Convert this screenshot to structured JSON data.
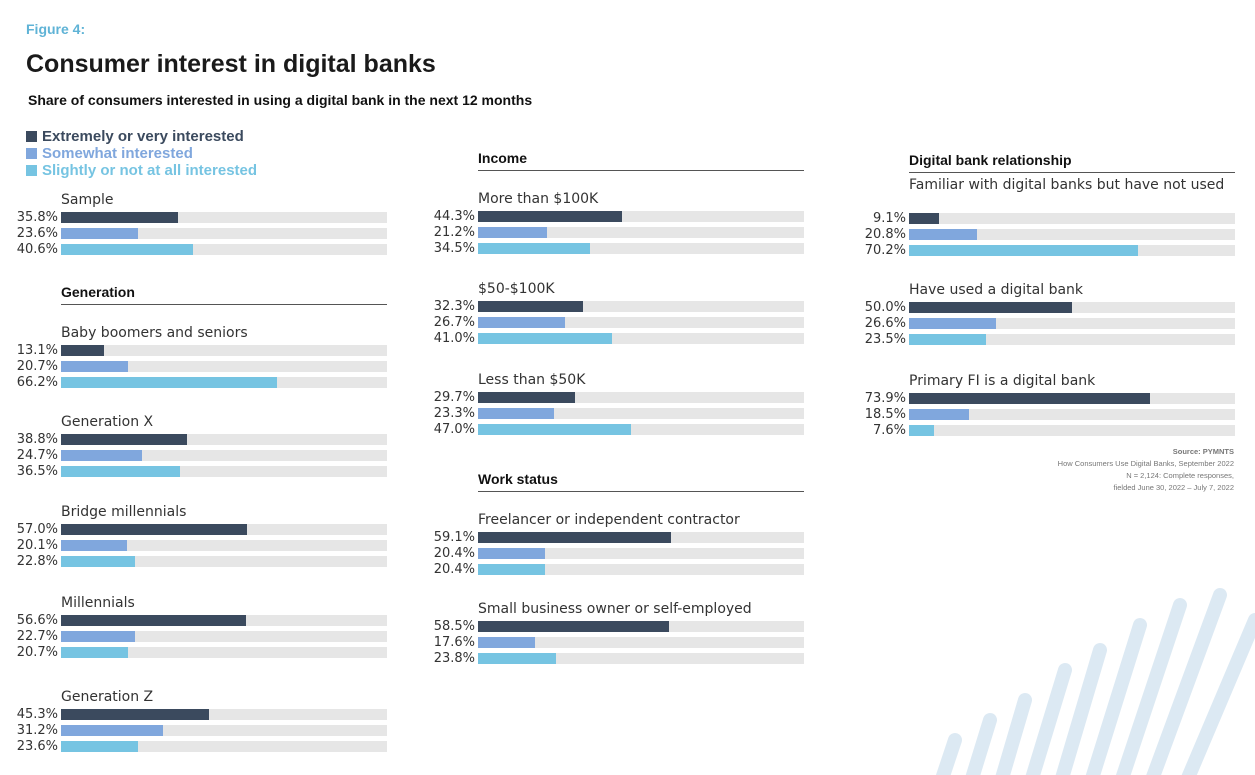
{
  "figure_label": "Figure 4:",
  "title": "Consumer interest in digital banks",
  "subtitle": "Share of consumers interested in using a digital bank in the next 12 months",
  "legend": [
    {
      "label": "Extremely or very interested",
      "color": "#3b4a5e"
    },
    {
      "label": "Somewhat interested",
      "color": "#80a7dd"
    },
    {
      "label": "Slightly or not at all interested",
      "color": "#76c4e2"
    }
  ],
  "source": {
    "title": "Source: PYMNTS",
    "lines": [
      "How Consumers Use Digital Banks, September 2022",
      "N = 2,124: Complete responses,",
      "fielded June 30, 2022 – July 7, 2022"
    ]
  },
  "chart_data": {
    "type": "bar",
    "orientation": "horizontal",
    "xlim": [
      0,
      100
    ],
    "series_names": [
      "Extremely or very interested",
      "Somewhat interested",
      "Slightly or not at all interested"
    ],
    "sections": [
      {
        "heading": "",
        "groups": [
          {
            "label": "Sample",
            "values": [
              35.8,
              23.6,
              40.6
            ],
            "labels": [
              "35.8%",
              "23.6%",
              "40.6%"
            ]
          }
        ]
      },
      {
        "heading": "Generation",
        "groups": [
          {
            "label": "Baby boomers and seniors",
            "values": [
              13.1,
              20.7,
              66.2
            ],
            "labels": [
              "13.1%",
              "20.7%",
              "66.2%"
            ]
          },
          {
            "label": "Generation X",
            "values": [
              38.8,
              24.7,
              36.5
            ],
            "labels": [
              "38.8%",
              "24.7%",
              "36.5%"
            ]
          },
          {
            "label": "Bridge millennials",
            "values": [
              57.0,
              20.1,
              22.8
            ],
            "labels": [
              "57.0%",
              "20.1%",
              "22.8%"
            ]
          },
          {
            "label": "Millennials",
            "values": [
              56.6,
              22.7,
              20.7
            ],
            "labels": [
              "56.6%",
              "22.7%",
              "20.7%"
            ]
          },
          {
            "label": "Generation Z",
            "values": [
              45.3,
              31.2,
              23.6
            ],
            "labels": [
              "45.3%",
              "31.2%",
              "23.6%"
            ]
          }
        ]
      },
      {
        "heading": "Income",
        "groups": [
          {
            "label": "More than $100K",
            "values": [
              44.3,
              21.2,
              34.5
            ],
            "labels": [
              "44.3%",
              "21.2%",
              "34.5%"
            ]
          },
          {
            "label": "$50-$100K",
            "values": [
              32.3,
              26.7,
              41.0
            ],
            "labels": [
              "32.3%",
              "26.7%",
              "41.0%"
            ]
          },
          {
            "label": "Less than $50K",
            "values": [
              29.7,
              23.3,
              47.0
            ],
            "labels": [
              "29.7%",
              "23.3%",
              "47.0%"
            ]
          }
        ]
      },
      {
        "heading": "Work status",
        "groups": [
          {
            "label": "Freelancer or independent contractor",
            "values": [
              59.1,
              20.4,
              20.4
            ],
            "labels": [
              "59.1%",
              "20.4%",
              "20.4%"
            ]
          },
          {
            "label": "Small business owner or self-employed",
            "values": [
              58.5,
              17.6,
              23.8
            ],
            "labels": [
              "58.5%",
              "17.6%",
              "23.8%"
            ]
          }
        ]
      },
      {
        "heading": "Digital bank relationship",
        "groups": [
          {
            "label": "Familiar with digital banks but have not used",
            "values": [
              9.1,
              20.8,
              70.2
            ],
            "labels": [
              "9.1%",
              "20.8%",
              "70.2%"
            ]
          },
          {
            "label": "Have used a digital bank",
            "values": [
              50.0,
              26.6,
              23.5
            ],
            "labels": [
              "50.0%",
              "26.6%",
              "23.5%"
            ]
          },
          {
            "label": "Primary FI is a digital bank",
            "values": [
              73.9,
              18.5,
              7.6
            ],
            "labels": [
              "73.9%",
              "18.5%",
              "7.6%"
            ]
          }
        ]
      }
    ]
  }
}
